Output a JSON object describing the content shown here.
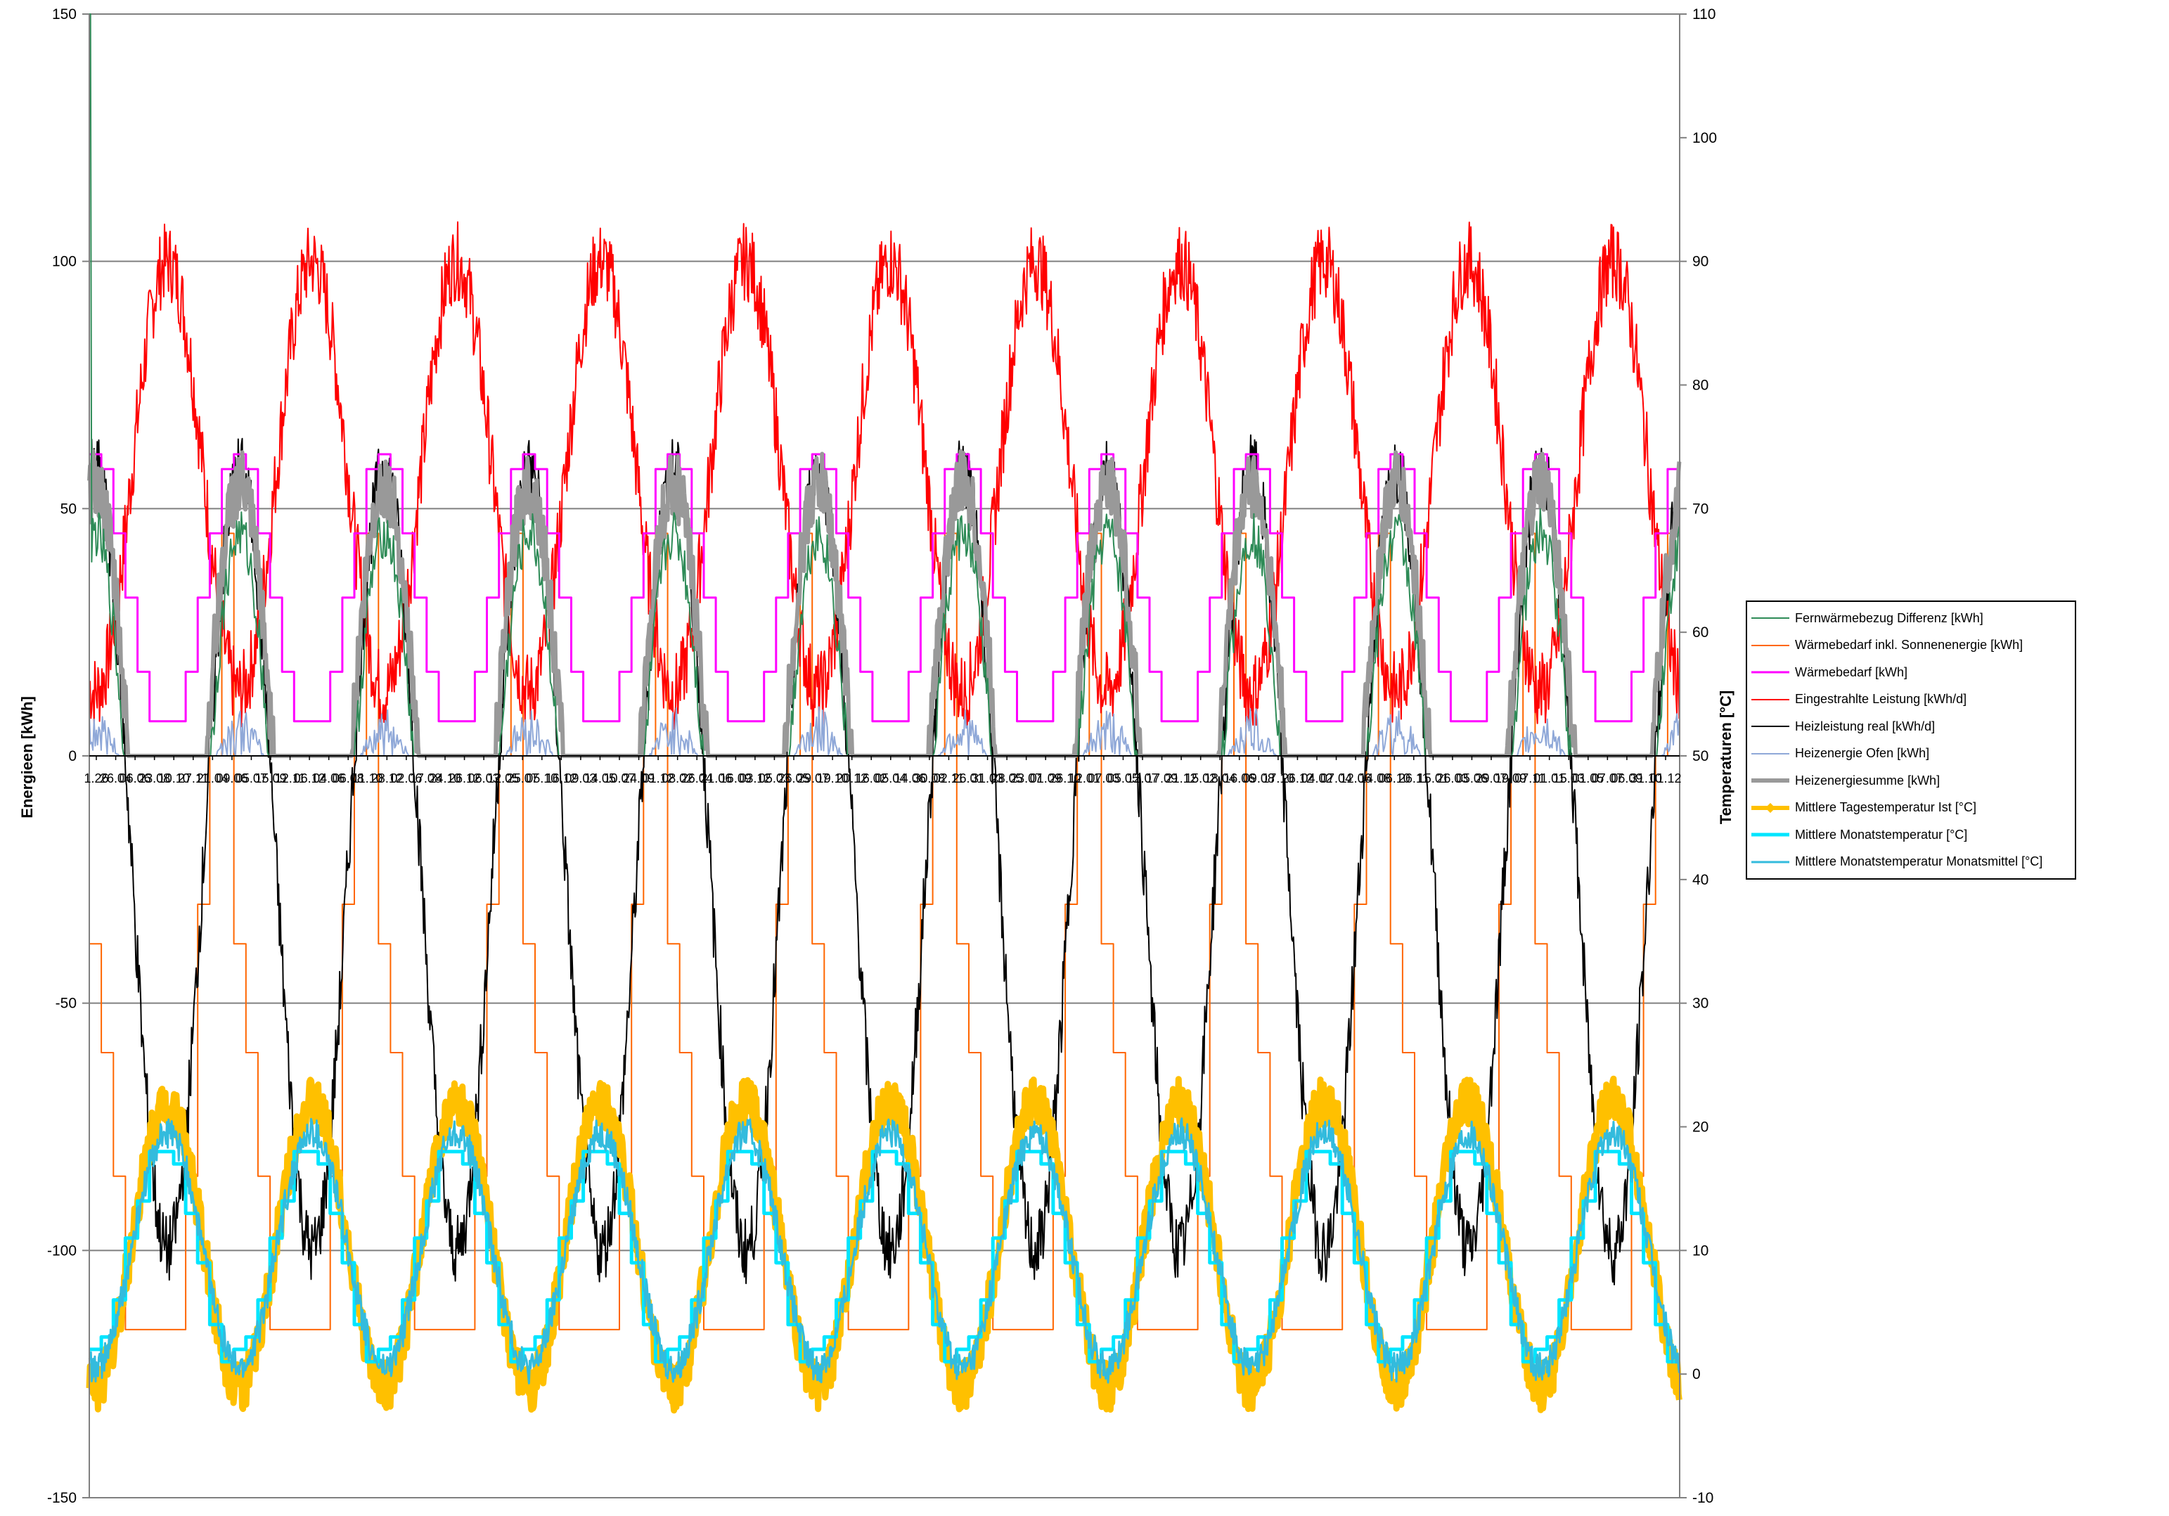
{
  "chart_data": {
    "type": "line",
    "title": "",
    "xlabel": "",
    "ylabel": "Energieen [kWh]",
    "y2label": "Temperaturen [°C]",
    "ylim": [
      -150,
      150
    ],
    "y2lim": [
      -10,
      110
    ],
    "yticks": [
      "150",
      "100",
      "50",
      "0",
      "-50",
      "-100",
      "-150"
    ],
    "y2ticks": [
      "110",
      "100",
      "90",
      "80",
      "70",
      "60",
      "50",
      "40",
      "30",
      "20",
      "10",
      "0",
      "-10"
    ],
    "grid": "horizontal",
    "legend_position": "right",
    "x_start_label": "1.26",
    "x_end_label": "1.12",
    "x_ticks_visible": [
      "1.26",
      "26.04",
      "06.06",
      "23.08",
      "10.10",
      "27.11",
      "21.04",
      "09.06",
      "05.07",
      "15.09",
      "12.11",
      "06.12",
      "04.06",
      "06.08",
      "11.10",
      "28.12",
      "02.06",
      "17.08",
      "24.10",
      "26.12",
      "06.03",
      "12.05",
      "25.07",
      "05.10",
      "16.12",
      "09.03",
      "14.05",
      "10.07",
      "24.09",
      "01.12",
      "08.02",
      "26.04",
      "21.06",
      "16.09",
      "03.12",
      "05.03",
      "26.05",
      "29.07",
      "19.10",
      "20.12",
      "16.02",
      "05.04",
      "14.06",
      "30.08",
      "02.11",
      "26.01",
      "31.03",
      "28.05",
      "23.07",
      "01.09",
      "26.10",
      "12.01",
      "07.03",
      "05.05",
      "12.07",
      "17.09",
      "21.12",
      "15.02",
      "18.04",
      "16.06",
      "09.08",
      "17.10",
      "26.12",
      "04.02",
      "07.04",
      "12.06",
      "14.08",
      "06.10",
      "26.11",
      "15.01",
      "26.03",
      "05.06",
      "29.07",
      "19.09",
      "07.11",
      "01.01",
      "15.03",
      "01.05",
      "07.07",
      "06.09",
      "31.10",
      "01.12"
    ],
    "years": 11,
    "series": [
      {
        "name": "Fernwärmebezug Differenz [kWh]",
        "axis": "left",
        "color": "#2e8b57",
        "width": 2,
        "marker": "none"
      },
      {
        "name": "Wärmebedarf inkl. Sonnenenergie [kWh]",
        "axis": "left",
        "color": "#ff6600",
        "width": 2,
        "marker": "none",
        "monthly_values": [
          -38,
          -60,
          -85,
          -116,
          -116,
          -116,
          -116,
          -116,
          -85,
          -30,
          0,
          45
        ]
      },
      {
        "name": "Wärmebedarf [kWh]",
        "axis": "left",
        "color": "#ff00ff",
        "width": 3,
        "marker": "none",
        "monthly_values": [
          61,
          58,
          45,
          32,
          17,
          7,
          7,
          7,
          17,
          32,
          45,
          58
        ]
      },
      {
        "name": "Eingestrahlte Leistung [kWh/d]",
        "axis": "left",
        "color": "#ff0000",
        "width": 2,
        "marker": "none",
        "annual_amplitude": [
          13,
          100
        ]
      },
      {
        "name": "Heizleistung real [kWh/d]",
        "axis": "left",
        "color": "#000000",
        "width": 2,
        "marker": "none",
        "annual_amplitude": [
          -100,
          58
        ]
      },
      {
        "name": "Heizenergie Ofen [kWh]",
        "axis": "left",
        "color": "#8fa8d8",
        "width": 2,
        "marker": "none"
      },
      {
        "name": "Heizenergiesumme [kWh]",
        "axis": "left",
        "color": "#999999",
        "width": 6,
        "marker": "none"
      },
      {
        "name": "Mittlere Tagestemperatur Ist [°C]",
        "axis": "right",
        "color": "#ffc000",
        "width": 9,
        "marker": "triangle",
        "annual_range": [
          -1,
          22
        ]
      },
      {
        "name": "Mittlere Monatstemperatur [°C]",
        "axis": "right",
        "color": "#00e5ff",
        "width": 5,
        "marker": "none",
        "monthly_values": [
          2,
          3,
          6,
          11,
          14,
          18,
          18,
          17,
          13,
          9,
          4,
          1
        ]
      },
      {
        "name": "Mittlere Monatstemperatur Monatsmittel [°C]",
        "axis": "right",
        "color": "#33bbdd",
        "width": 3,
        "marker": "none",
        "annual_range": [
          0.5,
          19.5
        ]
      }
    ]
  }
}
